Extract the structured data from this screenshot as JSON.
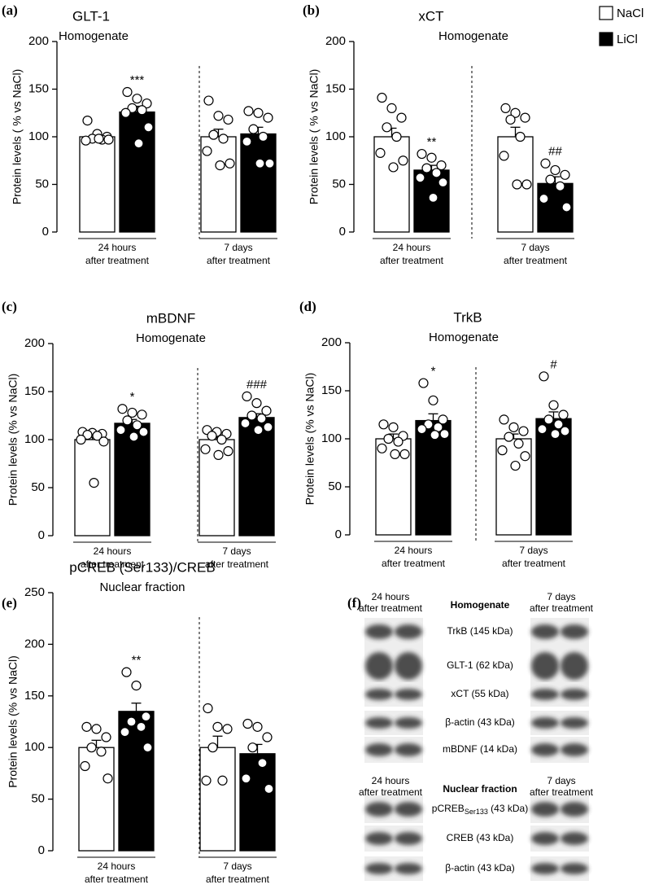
{
  "legend": [
    {
      "name": "NaCl",
      "color": "#ffffff"
    },
    {
      "name": "LiCl",
      "color": "#000000"
    }
  ],
  "chart_data": [
    {
      "type": "bar",
      "label": "(a)",
      "title": "GLT-1",
      "subtitle": "Homogenate",
      "ylabel": "Protein levels ( % vs NaCl)",
      "categories": [
        [
          "24 hours",
          "after treatment"
        ],
        [
          "7 days",
          "after treatment"
        ]
      ],
      "ylim": [
        0,
        200
      ],
      "yticks": [
        0,
        50,
        100,
        150,
        200
      ],
      "series": [
        {
          "color": "#ffffff",
          "values": [
            100,
            100
          ],
          "errors": [
            3,
            8
          ],
          "points": [
            [
              117,
              103,
              100,
              98,
              97,
              96,
              97,
              98
            ],
            [
              138,
              122,
              118,
              102,
              98,
              85,
              72,
              70
            ]
          ],
          "annotations": [
            null,
            null
          ]
        },
        {
          "color": "#000000",
          "values": [
            126,
            103
          ],
          "errors": [
            6,
            7
          ],
          "points": [
            [
              147,
              140,
              135,
              130,
              128,
              125,
              110,
              93
            ],
            [
              127,
              125,
              120,
              108,
              100,
              95,
              72,
              72
            ]
          ],
          "annotations": [
            "***",
            null
          ]
        }
      ]
    },
    {
      "type": "bar",
      "label": "(b)",
      "title": "xCT",
      "subtitle": "Homogenate",
      "ylabel": "Protein levels ( % vs NaCl)",
      "categories": [
        [
          "24 hours",
          "after treatment"
        ],
        [
          "7 days",
          "after treatment"
        ]
      ],
      "ylim": [
        0,
        200
      ],
      "yticks": [
        0,
        50,
        100,
        150,
        200
      ],
      "series": [
        {
          "color": "#ffffff",
          "values": [
            100,
            100
          ],
          "errors": [
            9,
            10
          ],
          "points": [
            [
              141,
              130,
              120,
              110,
              100,
              83,
              75,
              68
            ],
            [
              130,
              125,
              120,
              118,
              100,
              80,
              50,
              50
            ]
          ],
          "annotations": [
            null,
            null
          ]
        },
        {
          "color": "#000000",
          "values": [
            65,
            51
          ],
          "errors": [
            5,
            7
          ],
          "points": [
            [
              82,
              78,
              70,
              67,
              62,
              57,
              52,
              36
            ],
            [
              72,
              65,
              60,
              55,
              48,
              35,
              26
            ]
          ],
          "annotations": [
            "**",
            "##"
          ]
        }
      ]
    },
    {
      "type": "bar",
      "label": "(c)",
      "title": "mBDNF",
      "subtitle": "Homogenate",
      "ylabel": "Protein levels (% vs NaCl)",
      "categories": [
        [
          "24 hours",
          "after treatment"
        ],
        [
          "7 days",
          "after treatment"
        ]
      ],
      "ylim": [
        0,
        200
      ],
      "yticks": [
        0,
        50,
        100,
        150,
        200
      ],
      "series": [
        {
          "color": "#ffffff",
          "values": [
            100,
            100
          ],
          "errors": [
            6,
            4
          ],
          "points": [
            [
              108,
              107,
              106,
              105,
              104,
              100,
              98,
              55
            ],
            [
              110,
              108,
              106,
              104,
              100,
              90,
              88,
              84
            ]
          ],
          "annotations": [
            null,
            null
          ]
        },
        {
          "color": "#000000",
          "values": [
            117,
            123
          ],
          "errors": [
            4,
            4
          ],
          "points": [
            [
              132,
              128,
              126,
              120,
              115,
              110,
              108,
              103
            ],
            [
              145,
              138,
              130,
              125,
              122,
              117,
              113,
              110
            ]
          ],
          "annotations": [
            "*",
            "###"
          ]
        }
      ]
    },
    {
      "type": "bar",
      "label": "(d)",
      "title": "TrkB",
      "subtitle": "Homogenate",
      "ylabel": "Protein levels (% vs NaCl)",
      "categories": [
        [
          "24 hours",
          "after treatment"
        ],
        [
          "7 days",
          "after treatment"
        ]
      ],
      "ylim": [
        0,
        200
      ],
      "yticks": [
        0,
        50,
        100,
        150,
        200
      ],
      "series": [
        {
          "color": "#ffffff",
          "values": [
            100,
            100
          ],
          "errors": [
            5,
            5
          ],
          "points": [
            [
              115,
              112,
              103,
              100,
              97,
              90,
              84,
              84
            ],
            [
              120,
              112,
              108,
              102,
              95,
              88,
              82,
              72
            ]
          ],
          "annotations": [
            null,
            null
          ]
        },
        {
          "color": "#000000",
          "values": [
            119,
            121
          ],
          "errors": [
            7,
            7
          ],
          "points": [
            [
              158,
              140,
              120,
              115,
              112,
              110,
              105,
              104
            ],
            [
              165,
              135,
              125,
              120,
              115,
              110,
              108,
              105
            ]
          ],
          "annotations": [
            "*",
            "#"
          ]
        }
      ]
    },
    {
      "type": "bar",
      "label": "(e)",
      "title": "pCREB (Ser133)/CREB",
      "subtitle": "Nuclear fraction",
      "ylabel": "Protein levels (% vs NaCl)",
      "categories": [
        [
          "24 hours",
          "after treatment"
        ],
        [
          "7 days",
          "after treatment"
        ]
      ],
      "ylim": [
        0,
        250
      ],
      "yticks": [
        0,
        50,
        100,
        150,
        200,
        250
      ],
      "series": [
        {
          "color": "#ffffff",
          "values": [
            100,
            100
          ],
          "errors": [
            7,
            11
          ],
          "points": [
            [
              120,
              118,
              110,
              100,
              96,
              82,
              70
            ],
            [
              138,
              120,
              118,
              100,
              68,
              68
            ]
          ],
          "annotations": [
            null,
            null
          ]
        },
        {
          "color": "#000000",
          "values": [
            135,
            94
          ],
          "errors": [
            8,
            9
          ],
          "points": [
            [
              173,
              160,
              130,
              125,
              120,
              115,
              100
            ],
            [
              123,
              120,
              110,
              100,
              85,
              70,
              60
            ]
          ],
          "annotations": [
            "**",
            null
          ]
        }
      ]
    }
  ],
  "blot": {
    "label": "(f)",
    "sections": [
      {
        "left": [
          "24 hours",
          "after treatment"
        ],
        "title": "Homogenate",
        "right": [
          "7 days",
          "after treatment"
        ],
        "rows": [
          {
            "text": "TrkB (145 kDa)"
          },
          {
            "text": "GLT-1 (62 kDa)"
          },
          {
            "text": "xCT (55 kDa)"
          },
          {
            "text": "β-actin (43 kDa)"
          },
          {
            "text": "mBDNF (14 kDa)"
          }
        ]
      },
      {
        "left": [
          "24 hours",
          "after treatment"
        ],
        "title": "Nuclear fraction",
        "right": [
          "7 days",
          "after treatment"
        ],
        "rows": [
          {
            "text": "pCREB",
            "sub": "Ser133",
            "rest": " (43 kDa)"
          },
          {
            "text": "CREB (43 kDa)"
          },
          {
            "text": "β-actin (43 kDa)"
          }
        ]
      }
    ]
  }
}
